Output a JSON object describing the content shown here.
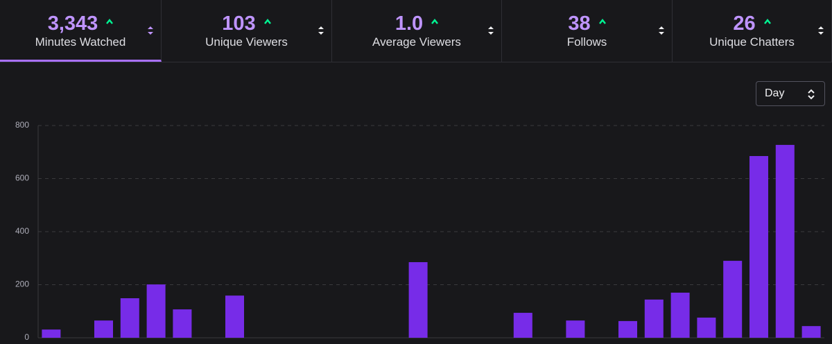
{
  "tabs": [
    {
      "value": "3,343",
      "label": "Minutes Watched"
    },
    {
      "value": "103",
      "label": "Unique Viewers"
    },
    {
      "value": "1.0",
      "label": "Average Viewers"
    },
    {
      "value": "38",
      "label": "Follows"
    },
    {
      "value": "26",
      "label": "Unique Chatters"
    }
  ],
  "period_select": "Day",
  "chart_data": {
    "type": "bar",
    "categories": [
      null,
      null,
      null,
      null,
      null,
      null,
      null,
      null,
      null,
      null,
      null,
      null,
      null,
      null,
      null,
      null,
      null,
      null,
      null,
      null,
      null,
      null,
      null,
      null,
      null,
      null,
      null,
      null,
      null,
      null
    ],
    "values": [
      31,
      0,
      65,
      149,
      201,
      107,
      0,
      159,
      0,
      0,
      0,
      0,
      0,
      0,
      285,
      0,
      0,
      0,
      94,
      0,
      65,
      0,
      63,
      144,
      170,
      76,
      290,
      685,
      727,
      44
    ],
    "color": "#772ce8",
    "ylim": [
      0,
      800
    ],
    "yticks": [
      0,
      200,
      400,
      600,
      800
    ],
    "grid": true
  }
}
